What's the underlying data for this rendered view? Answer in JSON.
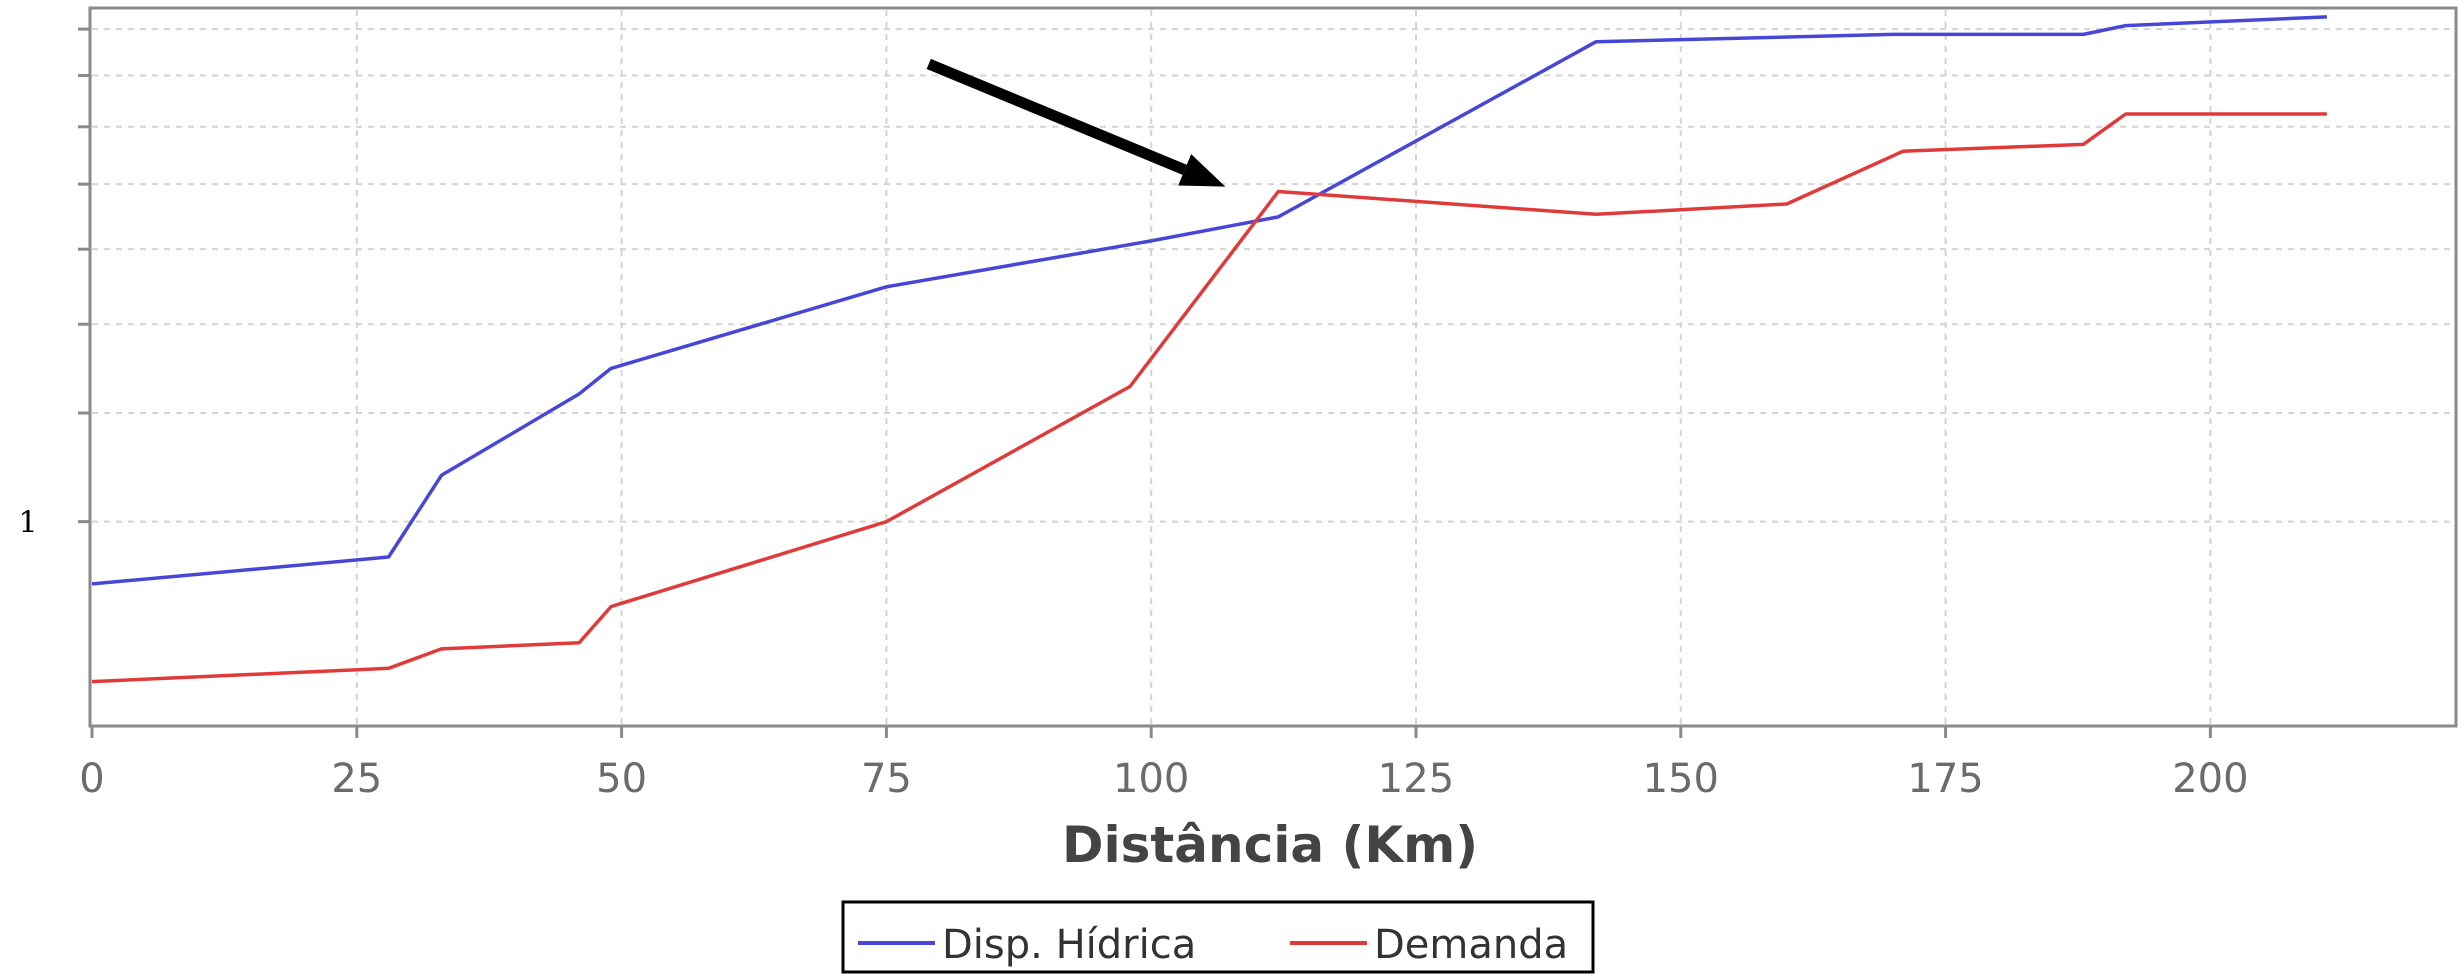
{
  "chart_data": {
    "type": "line",
    "xlabel": "Distância (Km)",
    "ylabel": "",
    "xlim": [
      0,
      223
    ],
    "xticks": [
      0,
      25,
      50,
      75,
      100,
      125,
      150,
      175,
      200
    ],
    "yscale": "log",
    "ylim": [
      0.66,
      2.86
    ],
    "ytick_labels": [
      {
        "value": 1,
        "label": "1"
      }
    ],
    "ygrid": [
      1,
      1.25,
      1.5,
      1.75,
      2,
      2.25,
      2.5,
      2.75
    ],
    "grid": true,
    "legend_position": "bottom-center",
    "series": [
      {
        "name": "Disp. Hídrica",
        "color": "#4747d6",
        "x": [
          0,
          28,
          33,
          46,
          49,
          75,
          100,
          112,
          142,
          170,
          188,
          192,
          211
        ],
        "y": [
          0.88,
          0.93,
          1.1,
          1.3,
          1.37,
          1.62,
          1.78,
          1.87,
          2.68,
          2.72,
          2.72,
          2.77,
          2.82
        ]
      },
      {
        "name": "Demanda",
        "color": "#e03b3b",
        "x": [
          0,
          28,
          33,
          46,
          49,
          75,
          98,
          112,
          142,
          160,
          171,
          188,
          192,
          211
        ],
        "y": [
          0.72,
          0.74,
          0.77,
          0.78,
          0.84,
          1.0,
          1.32,
          1.97,
          1.88,
          1.92,
          2.14,
          2.17,
          2.31,
          2.31
        ]
      }
    ],
    "annotations": [
      {
        "type": "arrow",
        "from": [
          79,
          2.56
        ],
        "to": [
          107,
          1.99
        ],
        "color": "#000000"
      }
    ]
  }
}
